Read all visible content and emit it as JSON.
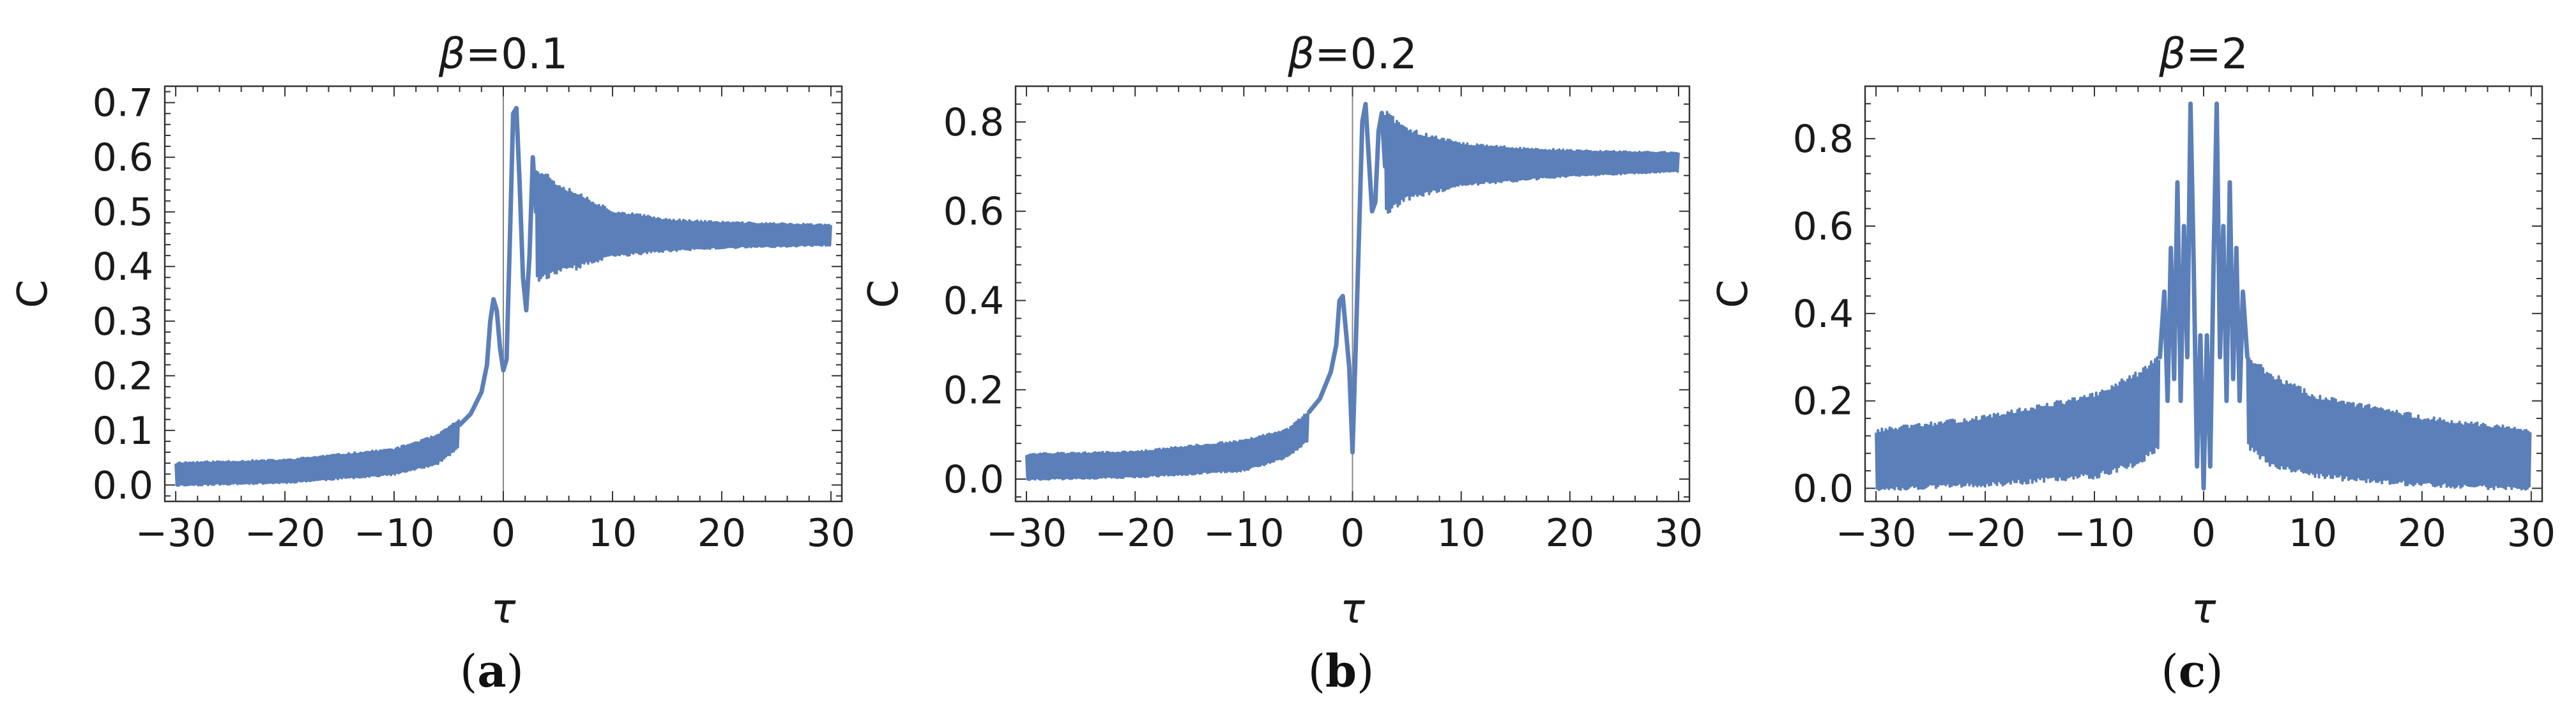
{
  "colors": {
    "series": "#5b7fb8",
    "frame": "#333333",
    "axis_line": "#888888"
  },
  "chart_data": [
    {
      "type": "line",
      "panel_letter": "a",
      "title_symbol": "β",
      "title_value": "=0.1",
      "xlabel": "τ",
      "ylabel": "C",
      "xlim": [
        -31,
        31
      ],
      "ylim": [
        -0.03,
        0.73
      ],
      "xticks": [
        -30,
        -20,
        -10,
        0,
        10,
        20,
        30
      ],
      "xtick_labels": [
        "−30",
        "−20",
        "−10",
        "0",
        "10",
        "20",
        "30"
      ],
      "yticks": [
        0.0,
        0.1,
        0.2,
        0.3,
        0.4,
        0.5,
        0.6,
        0.7
      ],
      "ytick_labels": [
        "0.0",
        "0.1",
        "0.2",
        "0.3",
        "0.4",
        "0.5",
        "0.6",
        "0.7"
      ],
      "zero_line": true,
      "envelope_left": {
        "x": [
          -30,
          -20,
          -10,
          -6,
          -4
        ],
        "lower": [
          0.0,
          0.005,
          0.02,
          0.04,
          0.07
        ],
        "upper": [
          0.04,
          0.045,
          0.065,
          0.09,
          0.12
        ]
      },
      "envelope_right": {
        "x": [
          3,
          5,
          10,
          15,
          20,
          30
        ],
        "lower": [
          0.38,
          0.39,
          0.42,
          0.43,
          0.435,
          0.44
        ],
        "upper": [
          0.58,
          0.55,
          0.5,
          0.485,
          0.48,
          0.475
        ]
      },
      "center_curve": {
        "x": [
          -4,
          -3,
          -2.5,
          -2,
          -1.5,
          -1.2,
          -0.9,
          -0.6,
          -0.3,
          0,
          0.3,
          0.6,
          0.9,
          1.2,
          1.5,
          1.8,
          2.1,
          2.4,
          2.7,
          3
        ],
        "y": [
          0.11,
          0.13,
          0.15,
          0.17,
          0.22,
          0.3,
          0.34,
          0.32,
          0.25,
          0.21,
          0.23,
          0.45,
          0.68,
          0.69,
          0.55,
          0.38,
          0.32,
          0.42,
          0.6,
          0.5
        ]
      }
    },
    {
      "type": "line",
      "panel_letter": "b",
      "title_symbol": "β",
      "title_value": "=0.2",
      "xlabel": "τ",
      "ylabel": "C",
      "xlim": [
        -31,
        31
      ],
      "ylim": [
        -0.05,
        0.88
      ],
      "xticks": [
        -30,
        -20,
        -10,
        0,
        10,
        20,
        30
      ],
      "xtick_labels": [
        "−30",
        "−20",
        "−10",
        "0",
        "10",
        "20",
        "30"
      ],
      "yticks": [
        0.0,
        0.2,
        0.4,
        0.6,
        0.8
      ],
      "ytick_labels": [
        "0.0",
        "0.2",
        "0.4",
        "0.6",
        "0.8"
      ],
      "zero_line": true,
      "envelope_left": {
        "x": [
          -30,
          -20,
          -10,
          -6,
          -4
        ],
        "lower": [
          0.0,
          0.005,
          0.02,
          0.05,
          0.09
        ],
        "upper": [
          0.055,
          0.06,
          0.085,
          0.11,
          0.15
        ]
      },
      "envelope_right": {
        "x": [
          3,
          5,
          10,
          15,
          20,
          30
        ],
        "lower": [
          0.6,
          0.63,
          0.66,
          0.67,
          0.68,
          0.69
        ],
        "upper": [
          0.82,
          0.78,
          0.75,
          0.74,
          0.735,
          0.73
        ]
      },
      "center_curve": {
        "x": [
          -4,
          -3,
          -2.5,
          -2,
          -1.5,
          -1.2,
          -0.9,
          -0.6,
          -0.3,
          0,
          0.3,
          0.6,
          0.9,
          1.2,
          1.5,
          1.8,
          2.1,
          2.4,
          2.7,
          3
        ],
        "y": [
          0.15,
          0.18,
          0.21,
          0.24,
          0.3,
          0.4,
          0.41,
          0.33,
          0.25,
          0.06,
          0.3,
          0.55,
          0.8,
          0.84,
          0.72,
          0.6,
          0.62,
          0.78,
          0.82,
          0.7
        ]
      }
    },
    {
      "type": "line",
      "panel_letter": "c",
      "title_symbol": "β",
      "title_value": "=2",
      "xlabel": "τ",
      "ylabel": "C",
      "xlim": [
        -31,
        31
      ],
      "ylim": [
        -0.03,
        0.92
      ],
      "xticks": [
        -30,
        -20,
        -10,
        0,
        10,
        20,
        30
      ],
      "xtick_labels": [
        "−30",
        "−20",
        "−10",
        "0",
        "10",
        "20",
        "30"
      ],
      "yticks": [
        0.0,
        0.2,
        0.4,
        0.6,
        0.8
      ],
      "ytick_labels": [
        "0.0",
        "0.2",
        "0.4",
        "0.6",
        "0.8"
      ],
      "zero_line": false,
      "envelope_left": {
        "x": [
          -30,
          -20,
          -10,
          -6,
          -4
        ],
        "lower": [
          0.0,
          0.01,
          0.03,
          0.06,
          0.1
        ],
        "upper": [
          0.13,
          0.16,
          0.21,
          0.26,
          0.3
        ]
      },
      "envelope_right": {
        "x": [
          4,
          6,
          10,
          20,
          30
        ],
        "lower": [
          0.1,
          0.06,
          0.03,
          0.01,
          0.0
        ],
        "upper": [
          0.3,
          0.26,
          0.21,
          0.16,
          0.13
        ]
      },
      "center_curve": {
        "x": [
          -4,
          -3.6,
          -3.3,
          -3,
          -2.7,
          -2.4,
          -2.1,
          -1.8,
          -1.5,
          -1.2,
          -0.9,
          -0.6,
          -0.3,
          0,
          0.3,
          0.6,
          0.9,
          1.2,
          1.5,
          1.8,
          2.1,
          2.4,
          2.7,
          3,
          3.3,
          3.6,
          4
        ],
        "y": [
          0.3,
          0.45,
          0.2,
          0.55,
          0.25,
          0.7,
          0.2,
          0.6,
          0.3,
          0.88,
          0.5,
          0.05,
          0.35,
          0.0,
          0.35,
          0.05,
          0.5,
          0.88,
          0.3,
          0.6,
          0.2,
          0.7,
          0.25,
          0.55,
          0.2,
          0.45,
          0.3
        ]
      }
    }
  ]
}
